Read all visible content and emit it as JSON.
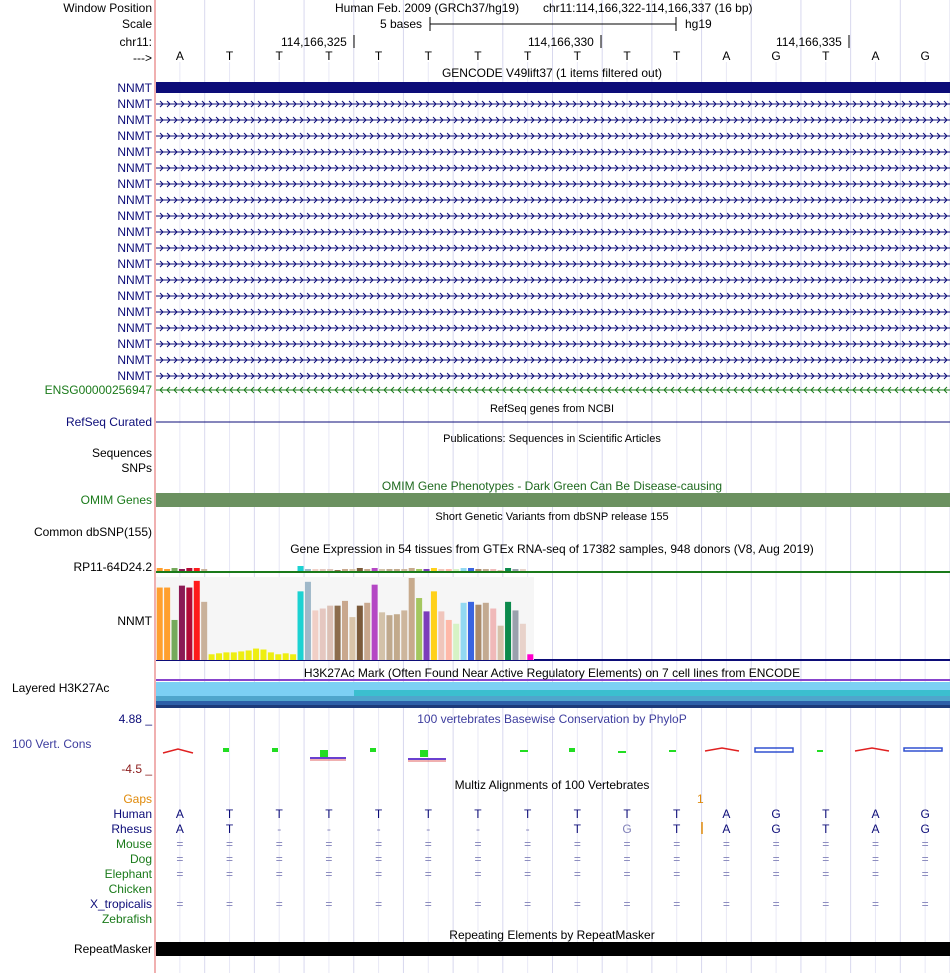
{
  "header": {
    "window_position_label": "Window Position",
    "scale_label": "Scale",
    "chrom_label": "chr11:",
    "strand_label": "--->",
    "assembly": "Human Feb. 2009 (GRCh37/hg19)",
    "position": "chr11:114,166,322-114,166,337 (16 bp)",
    "scale_text": "5 bases",
    "scale_db": "hg19",
    "ticks": [
      "114,166,325",
      "114,166,330",
      "114,166,335"
    ]
  },
  "sequence": [
    "A",
    "T",
    "T",
    "T",
    "T",
    "T",
    "T",
    "T",
    "T",
    "T",
    "T",
    "A",
    "G",
    "T",
    "A",
    "G"
  ],
  "tracks": {
    "gencode": {
      "title": "GENCODE V49lift37 (1 items filtered out)",
      "nnmt_label": "NNMT",
      "nnmt_count": 19,
      "ensg_label": "ENSG00000256947",
      "color_nnmt": "#0c0c78",
      "color_ensg": "#1a7a1a"
    },
    "refseq": {
      "title": "RefSeq genes from NCBI",
      "label": "RefSeq Curated",
      "color": "#0c0c78"
    },
    "publications": {
      "title": "Publications: Sequences in Scientific Articles",
      "label1": "Sequences",
      "label2": "SNPs"
    },
    "omim": {
      "title": "OMIM Gene Phenotypes - Dark Green Can Be Disease-causing",
      "label": "OMIM Genes",
      "color": "#6b9160",
      "title_color": "#1f6a1f"
    },
    "dbsnp": {
      "title": "Short Genetic Variants from dbSNP release 155",
      "label": "Common dbSNP(155)"
    },
    "gtex": {
      "title": "Gene Expression in 54 tissues from GTEx RNA-seq of 17382 samples, 948 donors (V8, Aug 2019)",
      "gene1": "RP11-64D24.2",
      "gene2": "NNMT",
      "nnmt_values": [
        76,
        76,
        42,
        78,
        76,
        83,
        61,
        6,
        7,
        8,
        8,
        9,
        10,
        12,
        11,
        8,
        6,
        7,
        6,
        72,
        82,
        52,
        54,
        57,
        57,
        62,
        45,
        57,
        60,
        79,
        50,
        47,
        48,
        52,
        86,
        65,
        51,
        72,
        51,
        42,
        38,
        60,
        61,
        58,
        60,
        54,
        36,
        61,
        52,
        38,
        6
      ],
      "nnmt_colors": [
        "#ff9f2e",
        "#ff9f2e",
        "#74a95b",
        "#8b1a55",
        "#b20a36",
        "#ff1a1a",
        "#c9b19a",
        "#eeee11",
        "#eeee11",
        "#eeee11",
        "#eeee11",
        "#eeee11",
        "#eeee11",
        "#eeee11",
        "#eeee11",
        "#eeee11",
        "#eeee11",
        "#eeee11",
        "#eeee11",
        "#1cd2d2",
        "#9fb8c9",
        "#f1cfc6",
        "#e5c7c0",
        "#dcc1b6",
        "#8b6c4c",
        "#c9a88e",
        "#d9c4a9",
        "#7b5a3b",
        "#c9a88e",
        "#b447c4",
        "#d3c2a9",
        "#bfa98d",
        "#c2aa8c",
        "#cdb69d",
        "#c7aa8c",
        "#a4c75f",
        "#7c3cba",
        "#ffd11a",
        "#f0c5bb",
        "#ffb8a8",
        "#d6f2c5",
        "#92d9f2",
        "#3a64e0",
        "#ab8b6a",
        "#c3aa91",
        "#f0b9b9",
        "#d6c2ab",
        "#0c8a4c",
        "#9aa1ad",
        "#e8d2ca",
        "#ff00cc"
      ],
      "rp11_values": [
        3,
        2,
        3,
        2,
        3,
        3,
        2,
        0,
        0,
        0,
        0,
        0,
        0,
        0,
        0,
        0,
        0,
        0,
        0,
        5,
        2,
        2,
        2,
        2,
        1,
        2,
        2,
        3,
        2,
        3,
        2,
        2,
        2,
        2,
        3,
        2,
        2,
        3,
        2,
        2,
        2,
        3,
        3,
        2,
        2,
        2,
        1,
        3,
        2,
        2,
        0
      ]
    },
    "h3k27ac": {
      "title": "H3K27Ac Mark (Often Found Near Active Regulatory Elements) on 7 cell lines from ENCODE",
      "label": "Layered H3K27Ac"
    },
    "conservation": {
      "title": "100 vertebrates Basewise Conservation by PhyloP",
      "label": "100 Vert. Cons",
      "max_label": "4.88 _",
      "min_label": "-4.5 _",
      "title_color": "#3d3d9e"
    },
    "multiz": {
      "title": "Multiz Alignments of 100 Vertebrates",
      "gaps_label": "Gaps",
      "gaps_value": "1",
      "gaps_color": "#e08a0a",
      "species": [
        "Human",
        "Rhesus",
        "Mouse",
        "Dog",
        "Elephant",
        "Chicken",
        "X_tropicalis",
        "Zebrafish"
      ],
      "species_colors": [
        "#0c0c78",
        "#0c0c78",
        "#1a7a1a",
        "#1a7a1a",
        "#1a7a1a",
        "#1a7a1a",
        "#0c0c78",
        "#1a7a1a"
      ],
      "rows": {
        "Human": [
          "A",
          "T",
          "T",
          "T",
          "T",
          "T",
          "T",
          "T",
          "T",
          "T",
          "T",
          "A",
          "G",
          "T",
          "A",
          "G"
        ],
        "Rhesus": [
          "A",
          "T",
          "-",
          "-",
          "-",
          "-",
          "-",
          "-",
          "T",
          "G",
          "T",
          "A",
          "G",
          "T",
          "A",
          "G"
        ],
        "Mouse": [
          "=",
          "=",
          "=",
          "=",
          "=",
          "=",
          "=",
          "=",
          "=",
          "=",
          "=",
          "=",
          "=",
          "=",
          "=",
          "="
        ],
        "Dog": [
          "=",
          "=",
          "=",
          "=",
          "=",
          "=",
          "=",
          "=",
          "=",
          "=",
          "=",
          "=",
          "=",
          "=",
          "=",
          "="
        ],
        "Elephant": [
          "=",
          "=",
          "=",
          "=",
          "=",
          "=",
          "=",
          "=",
          "=",
          "=",
          "=",
          "=",
          "=",
          "=",
          "=",
          "="
        ],
        "Chicken": [
          "",
          "",
          "",
          "",
          "",
          "",
          "",
          "",
          "",
          "",
          "",
          "",
          "",
          "",
          "",
          ""
        ],
        "X_tropicalis": [
          "=",
          "=",
          "=",
          "=",
          "=",
          "=",
          "=",
          "=",
          "=",
          "=",
          "=",
          "=",
          "=",
          "=",
          "=",
          "="
        ],
        "Zebrafish": [
          "",
          "",
          "",
          "",
          "",
          "",
          "",
          "",
          "",
          "",
          "",
          "",
          "",
          "",
          "",
          ""
        ]
      }
    },
    "repeatmasker": {
      "title": "Repeating Elements by RepeatMasker",
      "label": "RepeatMasker"
    }
  }
}
